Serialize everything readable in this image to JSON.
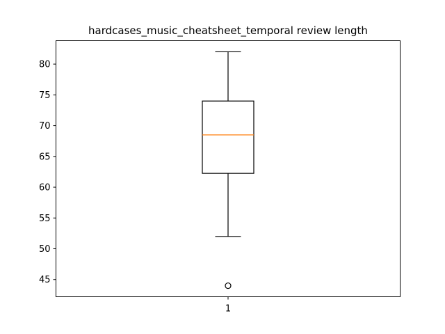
{
  "chart_data": {
    "type": "box",
    "title": "hardcases_music_cheatsheet_temporal review length",
    "xlabel": "",
    "ylabel": "",
    "categories": [
      "1"
    ],
    "ylim": [
      42.2,
      83.8
    ],
    "yticks": [
      45,
      50,
      55,
      60,
      65,
      70,
      75,
      80
    ],
    "grid": false,
    "boxes": [
      {
        "category": "1",
        "whisker_low": 52,
        "q1": 62.25,
        "median": 68.5,
        "q3": 74,
        "whisker_high": 82,
        "outliers": [
          44
        ]
      }
    ],
    "colors": {
      "box": "#000000",
      "median": "#ff7f0e",
      "axes": "#000000"
    }
  }
}
